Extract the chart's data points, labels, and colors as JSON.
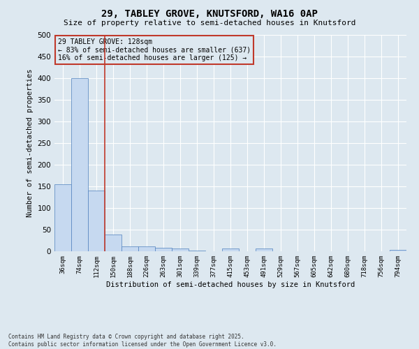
{
  "title1": "29, TABLEY GROVE, KNUTSFORD, WA16 0AP",
  "title2": "Size of property relative to semi-detached houses in Knutsford",
  "xlabel": "Distribution of semi-detached houses by size in Knutsford",
  "ylabel": "Number of semi-detached properties",
  "categories": [
    "36sqm",
    "74sqm",
    "112sqm",
    "150sqm",
    "188sqm",
    "226sqm",
    "263sqm",
    "301sqm",
    "339sqm",
    "377sqm",
    "415sqm",
    "453sqm",
    "491sqm",
    "529sqm",
    "567sqm",
    "605sqm",
    "642sqm",
    "680sqm",
    "718sqm",
    "756sqm",
    "794sqm"
  ],
  "values": [
    155,
    400,
    140,
    38,
    11,
    11,
    8,
    7,
    2,
    0,
    6,
    0,
    6,
    0,
    0,
    0,
    0,
    0,
    0,
    0,
    3
  ],
  "bar_color": "#c6d9f0",
  "bar_edge_color": "#4f81bd",
  "vline_x_index": 2,
  "vline_color": "#c0392b",
  "annotation_title": "29 TABLEY GROVE: 128sqm",
  "annotation_line1": "← 83% of semi-detached houses are smaller (637)",
  "annotation_line2": "16% of semi-detached houses are larger (125) →",
  "annotation_box_color": "#c0392b",
  "ylim": [
    0,
    500
  ],
  "yticks": [
    0,
    50,
    100,
    150,
    200,
    250,
    300,
    350,
    400,
    450,
    500
  ],
  "footer1": "Contains HM Land Registry data © Crown copyright and database right 2025.",
  "footer2": "Contains public sector information licensed under the Open Government Licence v3.0.",
  "bg_color": "#dde8f0",
  "grid_color": "#ffffff"
}
